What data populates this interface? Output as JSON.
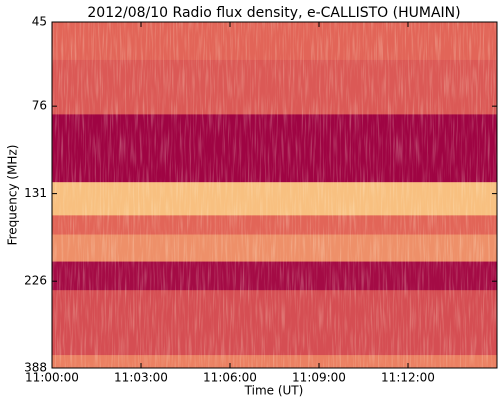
{
  "chart_data": {
    "type": "spectrogram",
    "title": "2012/08/10  Radio flux density, e-CALLISTO (HUMAIN)",
    "x_label": "Time (UT)",
    "y_label": "Frequency (MHz)",
    "xlim": [
      "11:00:00",
      "11:15:00"
    ],
    "xticks": [
      "11:00:00",
      "11:03:00",
      "11:06:00",
      "11:09:00",
      "11:12:00"
    ],
    "ylim": [
      45,
      388
    ],
    "yticks": [
      45,
      76,
      131,
      226,
      388
    ],
    "log_y": true,
    "y_inverted": true,
    "colormap": [
      "#9b0042",
      "#c8374f",
      "#e8705a",
      "#f8c080",
      "#fff2c0"
    ],
    "band_edges": [
      45,
      57,
      80,
      122,
      150,
      169,
      200,
      239,
      358,
      388
    ],
    "values": [
      0.45,
      0.4,
      0.02,
      0.75,
      0.45,
      0.6,
      0.05,
      0.35,
      0.55
    ]
  }
}
